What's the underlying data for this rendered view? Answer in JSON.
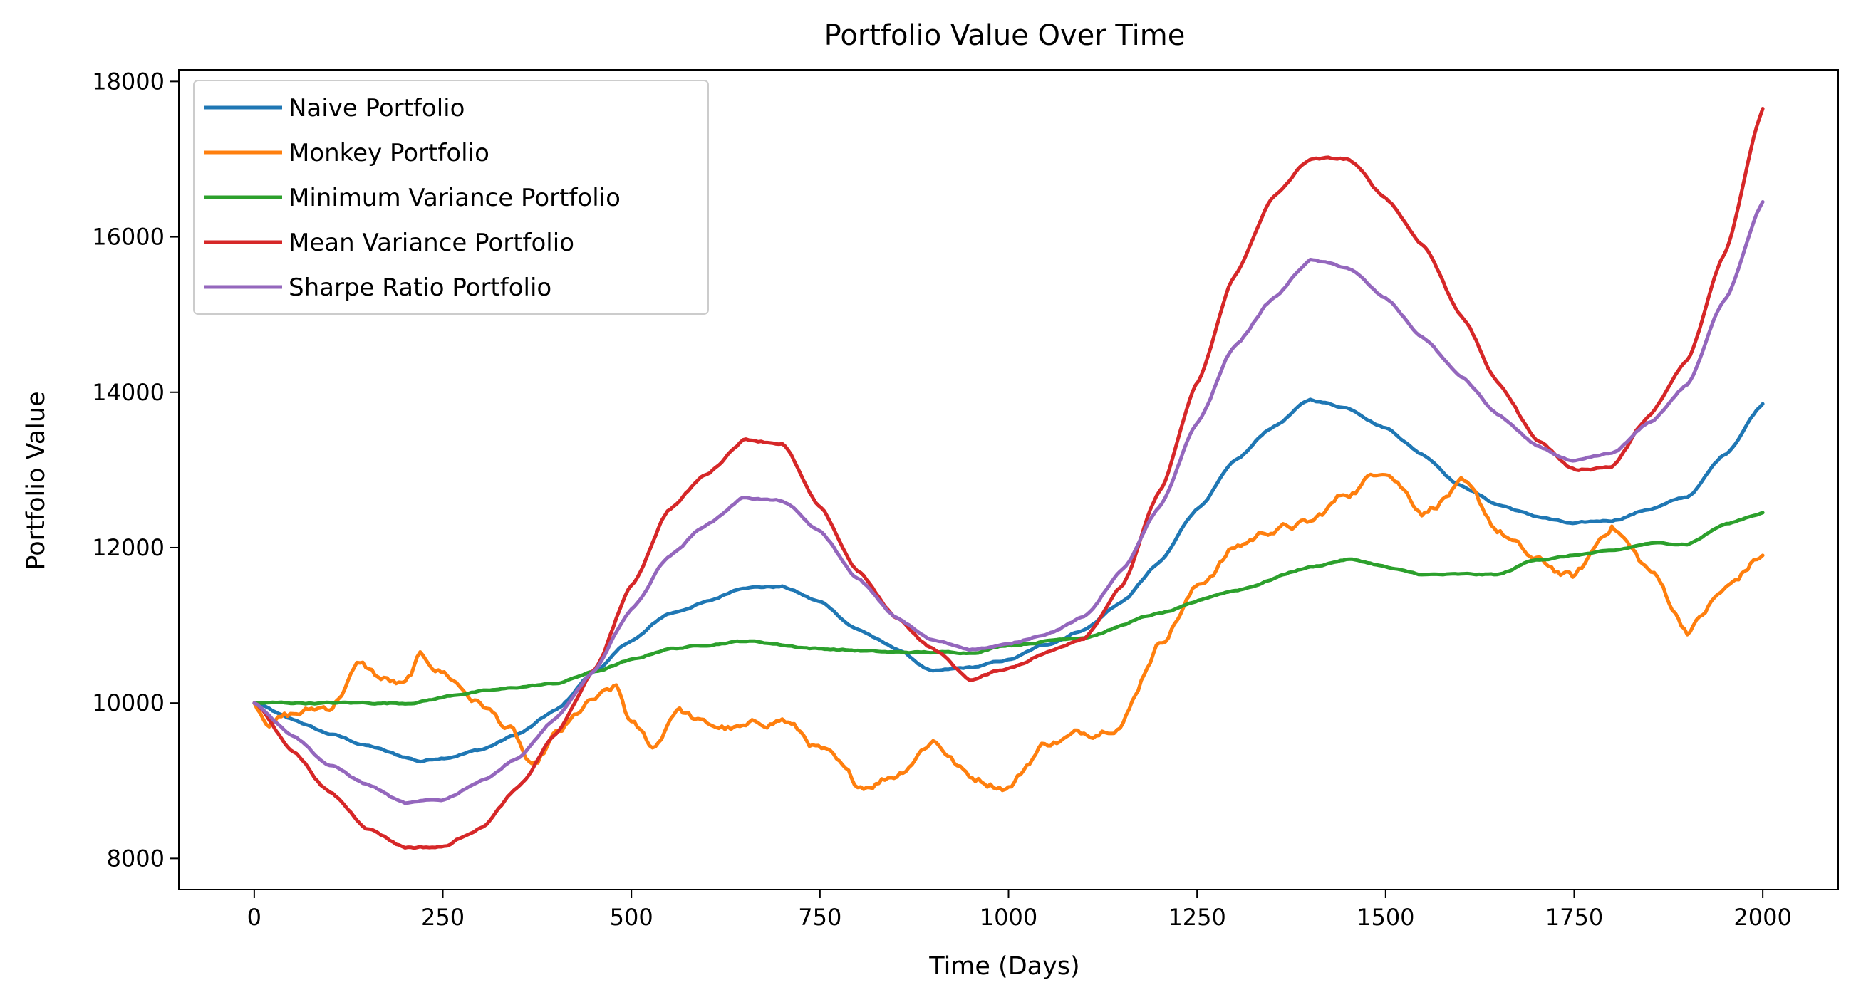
{
  "chart_data": {
    "type": "line",
    "title": "Portfolio Value Over Time",
    "xlabel": "Time (Days)",
    "ylabel": "Portfolio Value",
    "xlim": [
      -100,
      2100
    ],
    "ylim": [
      7600,
      18150
    ],
    "xticks": [
      0,
      250,
      500,
      750,
      1000,
      1250,
      1500,
      1750,
      2000
    ],
    "yticks": [
      8000,
      10000,
      12000,
      14000,
      16000,
      18000
    ],
    "grid": false,
    "legend_position": "upper-left",
    "series": [
      {
        "name": "Naive Portfolio",
        "color": "#1f77b4",
        "points": [
          [
            0,
            10000
          ],
          [
            50,
            9780
          ],
          [
            100,
            9600
          ],
          [
            150,
            9450
          ],
          [
            200,
            9300
          ],
          [
            220,
            9250
          ],
          [
            250,
            9300
          ],
          [
            300,
            9400
          ],
          [
            350,
            9600
          ],
          [
            400,
            9900
          ],
          [
            450,
            10400
          ],
          [
            500,
            10800
          ],
          [
            550,
            11150
          ],
          [
            600,
            11300
          ],
          [
            650,
            11500
          ],
          [
            700,
            11500
          ],
          [
            750,
            11300
          ],
          [
            800,
            10950
          ],
          [
            850,
            10700
          ],
          [
            900,
            10400
          ],
          [
            950,
            10450
          ],
          [
            1000,
            10550
          ],
          [
            1050,
            10750
          ],
          [
            1100,
            10950
          ],
          [
            1150,
            11300
          ],
          [
            1200,
            11800
          ],
          [
            1250,
            12500
          ],
          [
            1300,
            13100
          ],
          [
            1350,
            13550
          ],
          [
            1400,
            13900
          ],
          [
            1450,
            13800
          ],
          [
            1500,
            13550
          ],
          [
            1550,
            13200
          ],
          [
            1600,
            12800
          ],
          [
            1650,
            12550
          ],
          [
            1700,
            12400
          ],
          [
            1750,
            12300
          ],
          [
            1800,
            12350
          ],
          [
            1850,
            12500
          ],
          [
            1900,
            12650
          ],
          [
            1950,
            13200
          ],
          [
            2000,
            13850
          ]
        ]
      },
      {
        "name": "Monkey Portfolio",
        "color": "#ff7f0e",
        "points": [
          [
            0,
            10000
          ],
          [
            20,
            9800
          ],
          [
            50,
            9850
          ],
          [
            100,
            9950
          ],
          [
            140,
            10500
          ],
          [
            170,
            10300
          ],
          [
            200,
            10200
          ],
          [
            220,
            10550
          ],
          [
            250,
            10400
          ],
          [
            300,
            10000
          ],
          [
            340,
            9650
          ],
          [
            370,
            9100
          ],
          [
            400,
            9550
          ],
          [
            450,
            10000
          ],
          [
            480,
            10150
          ],
          [
            500,
            9700
          ],
          [
            530,
            9400
          ],
          [
            560,
            9950
          ],
          [
            600,
            9700
          ],
          [
            650,
            9650
          ],
          [
            700,
            9800
          ],
          [
            750,
            9400
          ],
          [
            800,
            8900
          ],
          [
            850,
            9100
          ],
          [
            900,
            9550
          ],
          [
            950,
            9050
          ],
          [
            1000,
            8950
          ],
          [
            1050,
            9500
          ],
          [
            1100,
            9600
          ],
          [
            1150,
            9800
          ],
          [
            1200,
            10800
          ],
          [
            1250,
            11500
          ],
          [
            1300,
            12000
          ],
          [
            1350,
            12250
          ],
          [
            1400,
            12300
          ],
          [
            1450,
            12700
          ],
          [
            1500,
            13050
          ],
          [
            1550,
            12500
          ],
          [
            1600,
            12800
          ],
          [
            1650,
            12200
          ],
          [
            1700,
            11800
          ],
          [
            1750,
            11600
          ],
          [
            1800,
            12300
          ],
          [
            1850,
            11700
          ],
          [
            1900,
            10950
          ],
          [
            1950,
            11450
          ],
          [
            2000,
            11900
          ]
        ]
      },
      {
        "name": "Minimum Variance Portfolio",
        "color": "#2ca02c",
        "points": [
          [
            0,
            10000
          ],
          [
            100,
            10000
          ],
          [
            200,
            10000
          ],
          [
            300,
            10150
          ],
          [
            400,
            10250
          ],
          [
            450,
            10400
          ],
          [
            500,
            10550
          ],
          [
            550,
            10700
          ],
          [
            650,
            10800
          ],
          [
            750,
            10700
          ],
          [
            850,
            10650
          ],
          [
            950,
            10650
          ],
          [
            1000,
            10750
          ],
          [
            1100,
            10850
          ],
          [
            1200,
            11150
          ],
          [
            1300,
            11450
          ],
          [
            1400,
            11750
          ],
          [
            1450,
            11850
          ],
          [
            1550,
            11650
          ],
          [
            1650,
            11650
          ],
          [
            1700,
            11850
          ],
          [
            1800,
            11950
          ],
          [
            1850,
            12050
          ],
          [
            1900,
            12050
          ],
          [
            1950,
            12300
          ],
          [
            2000,
            12450
          ]
        ]
      },
      {
        "name": "Mean Variance Portfolio",
        "color": "#d62728",
        "points": [
          [
            0,
            10000
          ],
          [
            50,
            9400
          ],
          [
            100,
            8850
          ],
          [
            150,
            8400
          ],
          [
            200,
            8150
          ],
          [
            250,
            8150
          ],
          [
            300,
            8400
          ],
          [
            350,
            8900
          ],
          [
            400,
            9600
          ],
          [
            450,
            10400
          ],
          [
            500,
            11500
          ],
          [
            550,
            12500
          ],
          [
            600,
            12950
          ],
          [
            650,
            13400
          ],
          [
            700,
            13350
          ],
          [
            750,
            12500
          ],
          [
            800,
            11700
          ],
          [
            850,
            11100
          ],
          [
            900,
            10700
          ],
          [
            950,
            10300
          ],
          [
            1000,
            10450
          ],
          [
            1050,
            10650
          ],
          [
            1100,
            10850
          ],
          [
            1150,
            11500
          ],
          [
            1200,
            12700
          ],
          [
            1250,
            14100
          ],
          [
            1300,
            15500
          ],
          [
            1350,
            16500
          ],
          [
            1400,
            17000
          ],
          [
            1450,
            17000
          ],
          [
            1500,
            16500
          ],
          [
            1550,
            15900
          ],
          [
            1600,
            15000
          ],
          [
            1650,
            14100
          ],
          [
            1700,
            13400
          ],
          [
            1750,
            13000
          ],
          [
            1800,
            13050
          ],
          [
            1850,
            13700
          ],
          [
            1900,
            14400
          ],
          [
            1950,
            15800
          ],
          [
            2000,
            17650
          ]
        ]
      },
      {
        "name": "Sharpe Ratio Portfolio",
        "color": "#9467bd",
        "points": [
          [
            0,
            10000
          ],
          [
            50,
            9600
          ],
          [
            100,
            9200
          ],
          [
            150,
            8950
          ],
          [
            200,
            8700
          ],
          [
            250,
            8750
          ],
          [
            300,
            9000
          ],
          [
            350,
            9300
          ],
          [
            400,
            9800
          ],
          [
            450,
            10400
          ],
          [
            500,
            11200
          ],
          [
            550,
            11900
          ],
          [
            600,
            12300
          ],
          [
            650,
            12650
          ],
          [
            700,
            12600
          ],
          [
            750,
            12200
          ],
          [
            800,
            11600
          ],
          [
            850,
            11100
          ],
          [
            900,
            10800
          ],
          [
            950,
            10700
          ],
          [
            1000,
            10750
          ],
          [
            1050,
            10900
          ],
          [
            1100,
            11100
          ],
          [
            1150,
            11700
          ],
          [
            1200,
            12500
          ],
          [
            1250,
            13600
          ],
          [
            1300,
            14600
          ],
          [
            1350,
            15200
          ],
          [
            1400,
            15700
          ],
          [
            1450,
            15600
          ],
          [
            1500,
            15200
          ],
          [
            1550,
            14700
          ],
          [
            1600,
            14200
          ],
          [
            1650,
            13700
          ],
          [
            1700,
            13300
          ],
          [
            1750,
            13100
          ],
          [
            1800,
            13200
          ],
          [
            1850,
            13600
          ],
          [
            1900,
            14100
          ],
          [
            1950,
            15200
          ],
          [
            2000,
            16450
          ]
        ]
      }
    ]
  }
}
